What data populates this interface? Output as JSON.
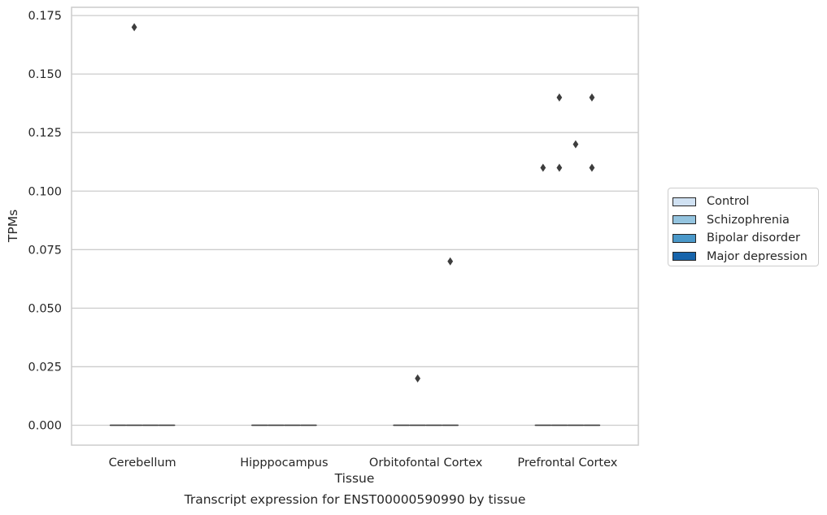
{
  "chart_data": {
    "type": "box",
    "title": "Transcript expression for ENST00000590990 by tissue",
    "xlabel": "Tissue",
    "ylabel": "TPMs",
    "categories": [
      "Cerebellum",
      "Hipppocampus",
      "Orbitofontal Cortex",
      "Prefrontal Cortex"
    ],
    "ylim": [
      -0.0085,
      0.1785
    ],
    "yticks": [
      0.0,
      0.025,
      0.05,
      0.075,
      0.1,
      0.125,
      0.15,
      0.175
    ],
    "ytick_labels": [
      "0.000",
      "0.025",
      "0.050",
      "0.075",
      "0.100",
      "0.125",
      "0.150",
      "0.175"
    ],
    "grid": "horizontal",
    "legend_position": "right",
    "series": [
      {
        "name": "Control",
        "color": "#d0e1f2",
        "boxes": [
          {
            "median": 0,
            "q1": 0,
            "q3": 0
          },
          {
            "median": 0,
            "q1": 0,
            "q3": 0
          },
          {
            "median": 0,
            "q1": 0,
            "q3": 0
          },
          {
            "median": 0,
            "q1": 0,
            "q3": 0
          }
        ],
        "outliers": [
          [],
          [],
          [],
          [
            0.11
          ]
        ]
      },
      {
        "name": "Schizophrenia",
        "color": "#94c4df",
        "boxes": [
          {
            "median": 0,
            "q1": 0,
            "q3": 0
          },
          {
            "median": 0,
            "q1": 0,
            "q3": 0
          },
          {
            "median": 0,
            "q1": 0,
            "q3": 0
          },
          {
            "median": 0,
            "q1": 0,
            "q3": 0
          }
        ],
        "outliers": [
          [
            0.17
          ],
          [],
          [
            0.02
          ],
          [
            0.14,
            0.11
          ]
        ]
      },
      {
        "name": "Bipolar disorder",
        "color": "#4a98c9",
        "boxes": [
          {
            "median": 0,
            "q1": 0,
            "q3": 0
          },
          {
            "median": 0,
            "q1": 0,
            "q3": 0
          },
          {
            "median": 0,
            "q1": 0,
            "q3": 0
          },
          {
            "median": 0,
            "q1": 0,
            "q3": 0
          }
        ],
        "outliers": [
          [],
          [],
          [],
          [
            0.12
          ]
        ]
      },
      {
        "name": "Major depression",
        "color": "#1764ab",
        "boxes": [
          {
            "median": 0,
            "q1": 0,
            "q3": 0
          },
          {
            "median": 0,
            "q1": 0,
            "q3": 0
          },
          {
            "median": 0,
            "q1": 0,
            "q3": 0
          },
          {
            "median": 0,
            "q1": 0,
            "q3": 0
          }
        ],
        "outliers": [
          [],
          [],
          [
            0.07
          ],
          [
            0.14,
            0.11
          ]
        ]
      }
    ]
  }
}
